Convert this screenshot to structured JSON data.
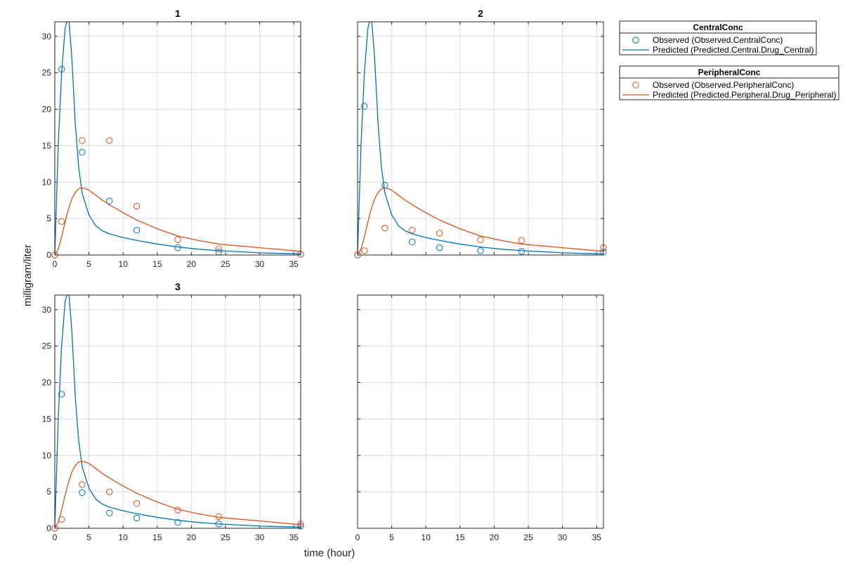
{
  "figure": {
    "xlabel": "time (hour)",
    "ylabel": "milligram/liter"
  },
  "colors": {
    "central": "#0072BD",
    "peripheral": "#D95319",
    "grid": "#dcdcdc",
    "axis": "#262626"
  },
  "legends": [
    {
      "title": "CentralConc",
      "entries": [
        {
          "marker": "circle",
          "color": "#0072BD",
          "label": "Observed (Observed.CentralConc)"
        },
        {
          "marker": "line",
          "color": "#0072BD",
          "label": "Predicted (Predicted.Central.Drug_Central)"
        }
      ]
    },
    {
      "title": "PeripheralConc",
      "entries": [
        {
          "marker": "circle",
          "color": "#D95319",
          "label": "Observed (Observed.PeripheralConc)"
        },
        {
          "marker": "line",
          "color": "#D95319",
          "label": "Predicted (Predicted.Peripheral.Drug_Peripheral)"
        }
      ]
    }
  ],
  "chart_data": [
    {
      "type": "line",
      "title": "1",
      "xlim": [
        0,
        36
      ],
      "ylim": [
        0,
        32
      ],
      "xticks": [
        "0",
        "5",
        "10",
        "15",
        "20",
        "25",
        "30",
        "35"
      ],
      "yticks": [
        "0",
        "5",
        "10",
        "15",
        "20",
        "25",
        "30"
      ],
      "grid": true,
      "series": [
        {
          "kind": "observed",
          "group": "central",
          "x": [
            0,
            1,
            4,
            8,
            12,
            18,
            24,
            36
          ],
          "y": [
            0,
            25.5,
            14.1,
            7.4,
            3.4,
            1.0,
            0.4,
            0.1
          ]
        },
        {
          "kind": "observed",
          "group": "peripheral",
          "x": [
            0,
            1,
            4,
            8,
            12,
            18,
            24,
            36
          ],
          "y": [
            0,
            4.6,
            15.7,
            15.7,
            6.7,
            2.1,
            0.8,
            0.1
          ]
        },
        {
          "kind": "predicted",
          "group": "central",
          "x": [
            0,
            0.5,
            1,
            1.5,
            2,
            2.5,
            3,
            3.5,
            4,
            5,
            6,
            7,
            8,
            10,
            12,
            15,
            18,
            21,
            24,
            30,
            36
          ],
          "y": [
            0,
            15,
            25,
            31,
            33,
            27,
            18,
            12,
            8.5,
            5.5,
            4.0,
            3.3,
            2.9,
            2.4,
            2.0,
            1.5,
            1.1,
            0.8,
            0.6,
            0.3,
            0.15
          ]
        },
        {
          "kind": "predicted",
          "group": "peripheral",
          "x": [
            0,
            0.5,
            1,
            1.5,
            2,
            2.5,
            3,
            3.5,
            4,
            4.5,
            5,
            6,
            7,
            8,
            10,
            12,
            15,
            18,
            21,
            24,
            30,
            36
          ],
          "y": [
            0,
            0.8,
            2.5,
            4.5,
            6.3,
            7.7,
            8.6,
            9.1,
            9.2,
            9.1,
            8.9,
            8.2,
            7.5,
            6.9,
            5.8,
            4.8,
            3.6,
            2.6,
            2.0,
            1.5,
            1.0,
            0.5
          ]
        }
      ]
    },
    {
      "type": "line",
      "title": "2",
      "xlim": [
        0,
        36
      ],
      "ylim": [
        0,
        32
      ],
      "xticks": [],
      "yticks": [],
      "grid": true,
      "series": [
        {
          "kind": "observed",
          "group": "central",
          "x": [
            0,
            1,
            4,
            8,
            12,
            18,
            24,
            36
          ],
          "y": [
            0,
            20.4,
            9.6,
            1.8,
            1.0,
            0.6,
            0.5,
            0.4
          ]
        },
        {
          "kind": "observed",
          "group": "peripheral",
          "x": [
            0,
            1,
            4,
            8,
            12,
            18,
            24,
            36
          ],
          "y": [
            0,
            0.6,
            3.7,
            3.4,
            3.0,
            2.1,
            2.0,
            1.0
          ]
        },
        {
          "kind": "predicted",
          "group": "central",
          "x": [
            0,
            0.5,
            1,
            1.5,
            2,
            2.5,
            3,
            3.5,
            4,
            5,
            6,
            7,
            8,
            10,
            12,
            15,
            18,
            21,
            24,
            30,
            36
          ],
          "y": [
            0,
            15,
            25,
            31,
            33,
            27,
            18,
            12,
            8.5,
            5.5,
            4.0,
            3.3,
            2.9,
            2.4,
            2.0,
            1.5,
            1.1,
            0.8,
            0.6,
            0.3,
            0.15
          ]
        },
        {
          "kind": "predicted",
          "group": "peripheral",
          "x": [
            0,
            0.5,
            1,
            1.5,
            2,
            2.5,
            3,
            3.5,
            4,
            4.5,
            5,
            6,
            7,
            8,
            10,
            12,
            15,
            18,
            21,
            24,
            30,
            36
          ],
          "y": [
            0,
            0.8,
            2.5,
            4.5,
            6.3,
            7.7,
            8.6,
            9.1,
            9.2,
            9.1,
            8.9,
            8.2,
            7.5,
            6.9,
            5.8,
            4.8,
            3.6,
            2.6,
            2.0,
            1.5,
            1.0,
            0.5
          ]
        }
      ]
    },
    {
      "type": "line",
      "title": "3",
      "xlim": [
        0,
        36
      ],
      "ylim": [
        0,
        32
      ],
      "xticks": [
        "0",
        "5",
        "10",
        "15",
        "20",
        "25",
        "30",
        "35"
      ],
      "yticks": [
        "0",
        "5",
        "10",
        "15",
        "20",
        "25",
        "30"
      ],
      "grid": true,
      "series": [
        {
          "kind": "observed",
          "group": "central",
          "x": [
            0,
            1,
            4,
            8,
            12,
            18,
            24,
            36
          ],
          "y": [
            0,
            18.4,
            4.9,
            2.1,
            1.4,
            0.8,
            0.6,
            0.3
          ]
        },
        {
          "kind": "observed",
          "group": "peripheral",
          "x": [
            0,
            1,
            4,
            8,
            12,
            18,
            24,
            36
          ],
          "y": [
            0,
            1.2,
            6.0,
            5.0,
            3.4,
            2.5,
            1.6,
            0.6
          ]
        },
        {
          "kind": "predicted",
          "group": "central",
          "x": [
            0,
            0.5,
            1,
            1.5,
            2,
            2.5,
            3,
            3.5,
            4,
            5,
            6,
            7,
            8,
            10,
            12,
            15,
            18,
            21,
            24,
            30,
            36
          ],
          "y": [
            0,
            15,
            25,
            31,
            33,
            27,
            18,
            12,
            8.5,
            5.5,
            4.0,
            3.3,
            2.9,
            2.4,
            2.0,
            1.5,
            1.1,
            0.8,
            0.6,
            0.3,
            0.15
          ]
        },
        {
          "kind": "predicted",
          "group": "peripheral",
          "x": [
            0,
            0.5,
            1,
            1.5,
            2,
            2.5,
            3,
            3.5,
            4,
            4.5,
            5,
            6,
            7,
            8,
            10,
            12,
            15,
            18,
            21,
            24,
            30,
            36
          ],
          "y": [
            0,
            0.8,
            2.5,
            4.5,
            6.3,
            7.7,
            8.6,
            9.1,
            9.2,
            9.1,
            8.9,
            8.2,
            7.5,
            6.9,
            5.8,
            4.8,
            3.6,
            2.6,
            2.0,
            1.5,
            1.0,
            0.5
          ]
        }
      ]
    },
    {
      "type": "line",
      "title": "",
      "xlim": [
        0,
        36
      ],
      "ylim": [
        0,
        32
      ],
      "xticks": [
        "0",
        "5",
        "10",
        "15",
        "20",
        "25",
        "30",
        "35"
      ],
      "yticks": [],
      "grid": true,
      "series": []
    }
  ]
}
